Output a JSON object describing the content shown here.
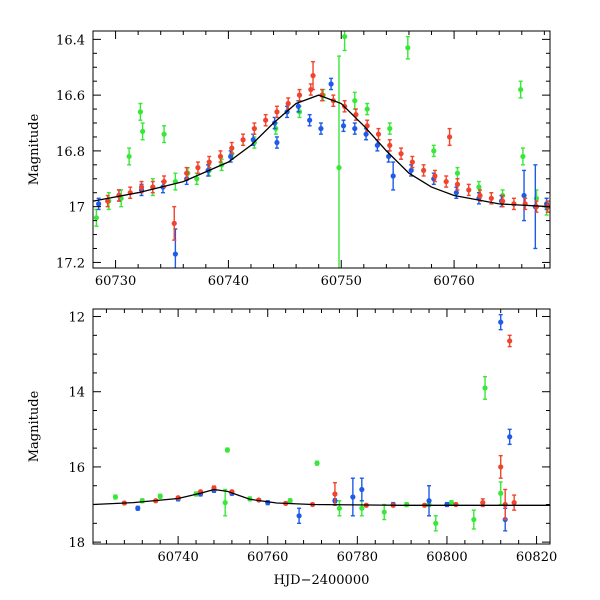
{
  "chart_data": [
    {
      "type": "scatter",
      "panel": "top",
      "title": "",
      "xlabel": "",
      "ylabel": "Magnitude",
      "xlim": [
        60728,
        60768.5
      ],
      "ylim": [
        17.22,
        16.37
      ],
      "y_inverted": true,
      "xticks": [
        60730,
        60740,
        60750,
        60760
      ],
      "xtick_labels": [
        "60730",
        "60740",
        "60750",
        "60760"
      ],
      "yticks": [
        16.4,
        16.6,
        16.8,
        17,
        17.2
      ],
      "ytick_labels": [
        "16.4",
        "16.6",
        "16.8",
        "17",
        "17.2"
      ],
      "grid": false,
      "model_curve": {
        "color": "#000000",
        "x": [
          60728,
          60732,
          60736,
          60740,
          60742,
          60744,
          60746,
          60748,
          60750,
          60752,
          60754,
          60756,
          60758,
          60760,
          60764,
          60768.5
        ],
        "y": [
          16.98,
          16.95,
          16.91,
          16.84,
          16.78,
          16.7,
          16.63,
          16.6,
          16.63,
          16.71,
          16.8,
          16.88,
          16.93,
          16.96,
          16.99,
          17.0
        ]
      },
      "series": [
        {
          "color": "#38e838",
          "x": [
            60728.3,
            60729.4,
            60730.5,
            60731.2,
            60732.2,
            60732.4,
            60733.3,
            60734.3,
            60735.3,
            60736.4,
            60737.2,
            60738.3,
            60739.4,
            60740.3,
            60742.3,
            60744.2,
            60746.3,
            60748.4,
            60749.8,
            60750.3,
            60751.2,
            60752.3,
            60754.3,
            60755.9,
            60758.2,
            60760.3,
            60762.2,
            60764.3,
            60765.9,
            60766.1,
            60767.3,
            60768.2
          ],
          "y": [
            17.04,
            16.98,
            16.97,
            16.82,
            16.66,
            16.73,
            16.93,
            16.74,
            16.91,
            16.88,
            16.9,
            16.87,
            16.85,
            16.81,
            16.77,
            16.72,
            16.66,
            16.6,
            16.86,
            16.39,
            16.62,
            16.65,
            16.72,
            16.43,
            16.8,
            16.88,
            16.93,
            16.96,
            16.58,
            16.82,
            16.97,
            17.0
          ],
          "yerr": [
            0.03,
            0.03,
            0.03,
            0.03,
            0.03,
            0.03,
            0.03,
            0.03,
            0.03,
            0.02,
            0.02,
            0.02,
            0.02,
            0.02,
            0.02,
            0.02,
            0.02,
            0.02,
            0.4,
            0.05,
            0.03,
            0.02,
            0.02,
            0.04,
            0.02,
            0.02,
            0.02,
            0.02,
            0.03,
            0.03,
            0.03,
            0.03
          ]
        },
        {
          "color": "#1f5be8",
          "x": [
            60728.5,
            60730.3,
            60732.3,
            60734.2,
            60735.3,
            60736.3,
            60738.2,
            60740.2,
            60742.2,
            60744.1,
            60744.3,
            60745.2,
            60746.2,
            60747.2,
            60748.2,
            60749.1,
            60750.2,
            60751.2,
            60752.2,
            60753.2,
            60754.2,
            60754.6,
            60756.2,
            60758.2,
            60760.2,
            60762.2,
            60764.2,
            60766.2,
            60767.2,
            60768.2
          ],
          "y": [
            16.99,
            16.96,
            16.94,
            16.93,
            17.17,
            16.9,
            16.87,
            16.82,
            16.76,
            16.7,
            16.77,
            16.66,
            16.64,
            16.69,
            16.72,
            16.56,
            16.71,
            16.72,
            16.74,
            16.78,
            16.82,
            16.89,
            16.87,
            16.9,
            16.95,
            16.97,
            16.98,
            16.96,
            17.0,
            16.99
          ],
          "yerr": [
            0.02,
            0.02,
            0.02,
            0.02,
            0.09,
            0.02,
            0.02,
            0.02,
            0.02,
            0.02,
            0.02,
            0.02,
            0.02,
            0.02,
            0.02,
            0.02,
            0.02,
            0.02,
            0.02,
            0.02,
            0.02,
            0.05,
            0.02,
            0.02,
            0.02,
            0.02,
            0.02,
            0.09,
            0.15,
            0.02
          ]
        },
        {
          "color": "#f0442c",
          "x": [
            60729.3,
            60730.3,
            60731.3,
            60732.3,
            60733.3,
            60734.3,
            60735.2,
            60736.3,
            60737.3,
            60738.3,
            60739.3,
            60740.3,
            60741.3,
            60742.3,
            60743.3,
            60744.3,
            60745.3,
            60746.3,
            60747.3,
            60747.5,
            60748.3,
            60749.3,
            60750.3,
            60751.3,
            60752.3,
            60753.3,
            60754.3,
            60755.3,
            60756.3,
            60757.3,
            60758.3,
            60759.3,
            60759.6,
            60760.3,
            60761.3,
            60762.3,
            60763.3,
            60764.3,
            60765.3,
            60766.3,
            60767.3,
            60768.3
          ],
          "y": [
            16.98,
            16.96,
            16.95,
            16.93,
            16.93,
            16.91,
            17.06,
            16.88,
            16.86,
            16.84,
            16.82,
            16.79,
            16.76,
            16.72,
            16.69,
            16.66,
            16.63,
            16.6,
            16.58,
            16.53,
            16.6,
            16.62,
            16.64,
            16.67,
            16.71,
            16.74,
            16.78,
            16.81,
            16.84,
            16.87,
            16.89,
            16.91,
            16.75,
            16.92,
            16.94,
            16.96,
            16.97,
            16.98,
            16.99,
            16.99,
            17.0,
            17.0
          ],
          "yerr": [
            0.02,
            0.02,
            0.02,
            0.02,
            0.02,
            0.02,
            0.06,
            0.02,
            0.02,
            0.02,
            0.02,
            0.02,
            0.02,
            0.02,
            0.02,
            0.02,
            0.02,
            0.02,
            0.02,
            0.05,
            0.02,
            0.02,
            0.02,
            0.02,
            0.02,
            0.02,
            0.02,
            0.02,
            0.02,
            0.02,
            0.02,
            0.02,
            0.03,
            0.02,
            0.02,
            0.02,
            0.02,
            0.02,
            0.02,
            0.02,
            0.02,
            0.02
          ]
        }
      ]
    },
    {
      "type": "scatter",
      "panel": "bottom",
      "title": "",
      "xlabel": "HJD−2400000",
      "ylabel": "Magnitude",
      "xlim": [
        60721,
        60823
      ],
      "ylim": [
        18.05,
        11.8
      ],
      "y_inverted": true,
      "xticks": [
        60740,
        60760,
        60780,
        60800,
        60820
      ],
      "xtick_labels": [
        "60740",
        "60760",
        "60780",
        "60800",
        "60820"
      ],
      "yticks": [
        12,
        14,
        16,
        18
      ],
      "ytick_labels": [
        "12",
        "14",
        "16",
        "18"
      ],
      "grid": false,
      "model_curve": {
        "color": "#000000",
        "x": [
          60721,
          60730,
          60740,
          60745,
          60748,
          60751,
          60756,
          60762,
          60770,
          60790,
          60810,
          60823
        ],
        "y": [
          17.0,
          16.95,
          16.84,
          16.7,
          16.6,
          16.65,
          16.86,
          16.96,
          17.0,
          17.02,
          17.02,
          17.02
        ]
      },
      "series": [
        {
          "color": "#38e838",
          "x": [
            60726,
            60732,
            60736,
            60744,
            60748,
            60750.5,
            60751,
            60756,
            60765,
            60771,
            60776,
            60781,
            60786,
            60791,
            60796,
            60797.5,
            60801,
            60806,
            60808.5,
            60812
          ],
          "y": [
            16.8,
            16.9,
            16.78,
            16.72,
            16.62,
            16.95,
            15.55,
            16.85,
            16.9,
            15.9,
            17.1,
            17.1,
            17.2,
            17.0,
            17.0,
            17.5,
            16.95,
            17.4,
            13.9,
            16.7
          ],
          "yerr": [
            0.05,
            0.05,
            0.05,
            0.05,
            0.05,
            0.35,
            0.05,
            0.05,
            0.05,
            0.05,
            0.2,
            0.2,
            0.2,
            0.05,
            0.05,
            0.2,
            0.05,
            0.25,
            0.3,
            0.3
          ]
        },
        {
          "color": "#1f5be8",
          "x": [
            60731,
            60740,
            60745,
            60748,
            60752,
            60760,
            60767,
            60775,
            60779,
            60781,
            60788,
            60796,
            60800,
            60812,
            60813,
            60814
          ],
          "y": [
            17.1,
            16.85,
            16.72,
            16.62,
            16.7,
            16.95,
            17.3,
            16.9,
            16.8,
            16.6,
            17.0,
            16.9,
            17.0,
            12.15,
            17.4,
            15.2
          ],
          "yerr": [
            0.05,
            0.05,
            0.05,
            0.05,
            0.05,
            0.05,
            0.2,
            0.05,
            0.5,
            0.3,
            0.05,
            0.4,
            0.05,
            0.2,
            0.3,
            0.2
          ]
        },
        {
          "color": "#f0442c",
          "x": [
            60728,
            60735,
            60740,
            60745,
            60748,
            60752,
            60758,
            60764,
            60770,
            60775,
            60782,
            60788,
            60795,
            60802,
            60808,
            60812,
            60813,
            60814,
            60815
          ],
          "y": [
            16.96,
            16.9,
            16.82,
            16.66,
            16.56,
            16.66,
            16.88,
            16.97,
            17.0,
            16.72,
            17.02,
            17.02,
            17.02,
            17.0,
            16.95,
            16.0,
            17.0,
            12.65,
            16.95
          ],
          "yerr": [
            0.03,
            0.03,
            0.03,
            0.03,
            0.05,
            0.03,
            0.03,
            0.03,
            0.03,
            0.3,
            0.03,
            0.03,
            0.03,
            0.03,
            0.1,
            0.3,
            0.4,
            0.15,
            0.2
          ]
        }
      ]
    }
  ]
}
